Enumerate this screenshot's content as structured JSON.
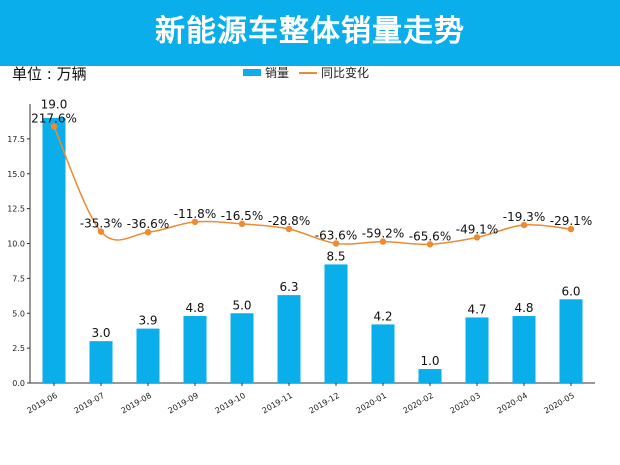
{
  "header": {
    "title": "新能源车整体销量走势"
  },
  "unit_label": "单位 : 万辆",
  "chart_data": {
    "type": "bar+line",
    "title": "新能源车整体销量走势",
    "categories": [
      "2019-06",
      "2019-07",
      "2019-08",
      "2019-09",
      "2019-10",
      "2019-11",
      "2019-12",
      "2020-01",
      "2020-02",
      "2020-03",
      "2020-04",
      "2020-05"
    ],
    "series": [
      {
        "name": "销量",
        "type": "bar",
        "color": "#0aaeea",
        "values": [
          19.0,
          3.0,
          3.9,
          4.8,
          5.0,
          6.3,
          8.5,
          4.2,
          1.0,
          4.7,
          4.8,
          6.0
        ],
        "labels": [
          "19.0",
          "3.0",
          "3.9",
          "4.8",
          "5.0",
          "6.3",
          "8.5",
          "4.2",
          "1.0",
          "4.7",
          "4.8",
          "6.0"
        ]
      },
      {
        "name": "同比变化",
        "type": "line",
        "color": "#f08a30",
        "smooth": true,
        "unit": "%",
        "axis": "secondary (hidden)",
        "values": [
          217.6,
          -35.3,
          -36.6,
          -11.8,
          -16.5,
          -28.8,
          -63.6,
          -59.2,
          -65.6,
          -49.1,
          -19.3,
          -29.1
        ],
        "labels": [
          "217.6%",
          "-35.3%",
          "-36.6%",
          "-11.8%",
          "-16.5%",
          "-28.8%",
          "-63.6%",
          "-59.2%",
          "-65.6%",
          "-49.1%",
          "-19.3%",
          "-29.1%"
        ]
      }
    ],
    "ylim": [
      0,
      20
    ],
    "yticks": [
      "0.0",
      "2.5",
      "5.0",
      "7.5",
      "10.0",
      "12.5",
      "15.0",
      "17.5"
    ],
    "legend": {
      "position": "top-center",
      "items": [
        "销量",
        "同比变化"
      ]
    },
    "grid": false
  }
}
